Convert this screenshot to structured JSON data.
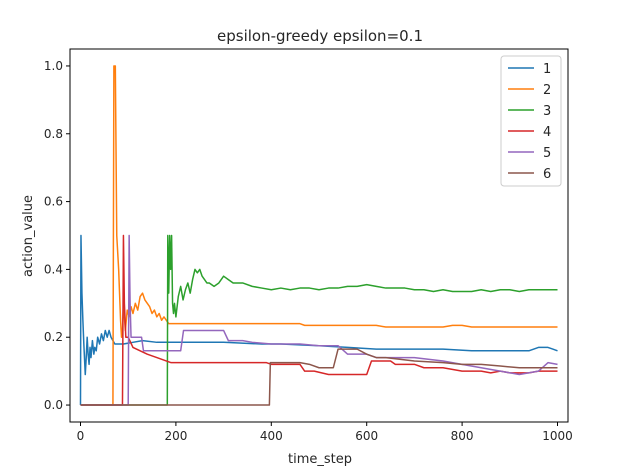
{
  "chart_data": {
    "type": "line",
    "title": "epsilon-greedy epsilon=0.1",
    "xlabel": "time_step",
    "ylabel": "action_value",
    "xlim": [
      -22,
      1022
    ],
    "ylim": [
      -0.05,
      1.05
    ],
    "xticks": [
      0,
      200,
      400,
      600,
      800,
      1000
    ],
    "yticks": [
      0.0,
      0.2,
      0.4,
      0.6,
      0.8,
      1.0
    ],
    "xtick_labels": [
      "0",
      "200",
      "400",
      "600",
      "800",
      "1000"
    ],
    "ytick_labels": [
      "0.0",
      "0.2",
      "0.4",
      "0.6",
      "0.8",
      "1.0"
    ],
    "grid": false,
    "legend_position": "top-right",
    "series": [
      {
        "name": "1",
        "color": "#1f77b4",
        "points": [
          [
            0,
            0
          ],
          [
            1,
            0.5
          ],
          [
            3,
            0.33
          ],
          [
            5,
            0.25
          ],
          [
            7,
            0.18
          ],
          [
            9,
            0.12
          ],
          [
            10,
            0.09
          ],
          [
            12,
            0.14
          ],
          [
            14,
            0.2
          ],
          [
            16,
            0.15
          ],
          [
            18,
            0.12
          ],
          [
            20,
            0.17
          ],
          [
            22,
            0.14
          ],
          [
            25,
            0.19
          ],
          [
            28,
            0.15
          ],
          [
            30,
            0.17
          ],
          [
            33,
            0.16
          ],
          [
            36,
            0.2
          ],
          [
            40,
            0.18
          ],
          [
            44,
            0.21
          ],
          [
            48,
            0.19
          ],
          [
            52,
            0.22
          ],
          [
            56,
            0.2
          ],
          [
            60,
            0.22
          ],
          [
            64,
            0.2
          ],
          [
            68,
            0.19
          ],
          [
            72,
            0.18
          ],
          [
            80,
            0.18
          ],
          [
            90,
            0.18
          ],
          [
            110,
            0.185
          ],
          [
            130,
            0.19
          ],
          [
            160,
            0.185
          ],
          [
            200,
            0.185
          ],
          [
            300,
            0.185
          ],
          [
            380,
            0.18
          ],
          [
            420,
            0.18
          ],
          [
            500,
            0.175
          ],
          [
            560,
            0.17
          ],
          [
            620,
            0.165
          ],
          [
            700,
            0.165
          ],
          [
            760,
            0.165
          ],
          [
            820,
            0.16
          ],
          [
            880,
            0.16
          ],
          [
            940,
            0.16
          ],
          [
            960,
            0.17
          ],
          [
            980,
            0.17
          ],
          [
            990,
            0.165
          ],
          [
            1000,
            0.16
          ]
        ]
      },
      {
        "name": "2",
        "color": "#ff7f0e",
        "points": [
          [
            0,
            0
          ],
          [
            68,
            0
          ],
          [
            70,
            1.0
          ],
          [
            73,
            1.0
          ],
          [
            76,
            0.5
          ],
          [
            80,
            0.4
          ],
          [
            84,
            0.25
          ],
          [
            86,
            0.2
          ],
          [
            88,
            0.22
          ],
          [
            90,
            0.3
          ],
          [
            94,
            0.22
          ],
          [
            98,
            0.28
          ],
          [
            102,
            0.26
          ],
          [
            106,
            0.29
          ],
          [
            110,
            0.27
          ],
          [
            115,
            0.3
          ],
          [
            120,
            0.28
          ],
          [
            125,
            0.32
          ],
          [
            130,
            0.33
          ],
          [
            135,
            0.31
          ],
          [
            140,
            0.3
          ],
          [
            145,
            0.29
          ],
          [
            150,
            0.27
          ],
          [
            155,
            0.28
          ],
          [
            160,
            0.26
          ],
          [
            165,
            0.27
          ],
          [
            170,
            0.25
          ],
          [
            175,
            0.26
          ],
          [
            180,
            0.25
          ],
          [
            185,
            0.24
          ],
          [
            200,
            0.24
          ],
          [
            300,
            0.24
          ],
          [
            400,
            0.24
          ],
          [
            460,
            0.24
          ],
          [
            470,
            0.235
          ],
          [
            560,
            0.235
          ],
          [
            620,
            0.235
          ],
          [
            640,
            0.23
          ],
          [
            700,
            0.23
          ],
          [
            760,
            0.23
          ],
          [
            780,
            0.235
          ],
          [
            800,
            0.235
          ],
          [
            820,
            0.23
          ],
          [
            900,
            0.23
          ],
          [
            1000,
            0.23
          ]
        ]
      },
      {
        "name": "3",
        "color": "#2ca02c",
        "points": [
          [
            0,
            0
          ],
          [
            182,
            0
          ],
          [
            183,
            0.5
          ],
          [
            185,
            0.33
          ],
          [
            187,
            0.5
          ],
          [
            189,
            0.4
          ],
          [
            191,
            0.5
          ],
          [
            193,
            0.3
          ],
          [
            195,
            0.27
          ],
          [
            197,
            0.3
          ],
          [
            200,
            0.26
          ],
          [
            205,
            0.32
          ],
          [
            210,
            0.35
          ],
          [
            215,
            0.31
          ],
          [
            220,
            0.34
          ],
          [
            225,
            0.36
          ],
          [
            230,
            0.33
          ],
          [
            235,
            0.37
          ],
          [
            240,
            0.4
          ],
          [
            245,
            0.39
          ],
          [
            250,
            0.4
          ],
          [
            255,
            0.38
          ],
          [
            260,
            0.37
          ],
          [
            265,
            0.36
          ],
          [
            270,
            0.36
          ],
          [
            280,
            0.35
          ],
          [
            290,
            0.36
          ],
          [
            300,
            0.38
          ],
          [
            310,
            0.37
          ],
          [
            320,
            0.36
          ],
          [
            340,
            0.36
          ],
          [
            360,
            0.35
          ],
          [
            380,
            0.345
          ],
          [
            400,
            0.34
          ],
          [
            420,
            0.345
          ],
          [
            440,
            0.34
          ],
          [
            460,
            0.345
          ],
          [
            480,
            0.345
          ],
          [
            500,
            0.34
          ],
          [
            520,
            0.345
          ],
          [
            540,
            0.345
          ],
          [
            560,
            0.35
          ],
          [
            580,
            0.35
          ],
          [
            600,
            0.355
          ],
          [
            620,
            0.35
          ],
          [
            640,
            0.345
          ],
          [
            660,
            0.345
          ],
          [
            680,
            0.345
          ],
          [
            700,
            0.34
          ],
          [
            720,
            0.34
          ],
          [
            740,
            0.335
          ],
          [
            760,
            0.34
          ],
          [
            780,
            0.335
          ],
          [
            800,
            0.335
          ],
          [
            820,
            0.335
          ],
          [
            840,
            0.34
          ],
          [
            860,
            0.335
          ],
          [
            880,
            0.34
          ],
          [
            900,
            0.34
          ],
          [
            920,
            0.335
          ],
          [
            940,
            0.34
          ],
          [
            960,
            0.34
          ],
          [
            980,
            0.34
          ],
          [
            1000,
            0.34
          ]
        ]
      },
      {
        "name": "4",
        "color": "#d62728",
        "points": [
          [
            0,
            0
          ],
          [
            88,
            0
          ],
          [
            90,
            0.5
          ],
          [
            92,
            0.3
          ],
          [
            95,
            0.2
          ],
          [
            100,
            0.2
          ],
          [
            110,
            0.17
          ],
          [
            125,
            0.16
          ],
          [
            140,
            0.15
          ],
          [
            160,
            0.14
          ],
          [
            190,
            0.125
          ],
          [
            220,
            0.125
          ],
          [
            300,
            0.125
          ],
          [
            390,
            0.125
          ],
          [
            400,
            0.12
          ],
          [
            430,
            0.12
          ],
          [
            460,
            0.12
          ],
          [
            470,
            0.1
          ],
          [
            490,
            0.1
          ],
          [
            520,
            0.09
          ],
          [
            550,
            0.09
          ],
          [
            600,
            0.09
          ],
          [
            610,
            0.13
          ],
          [
            650,
            0.13
          ],
          [
            660,
            0.12
          ],
          [
            700,
            0.12
          ],
          [
            720,
            0.11
          ],
          [
            760,
            0.11
          ],
          [
            800,
            0.1
          ],
          [
            840,
            0.1
          ],
          [
            860,
            0.095
          ],
          [
            880,
            0.1
          ],
          [
            900,
            0.095
          ],
          [
            940,
            0.095
          ],
          [
            960,
            0.1
          ],
          [
            1000,
            0.1
          ]
        ]
      },
      {
        "name": "5",
        "color": "#9467bd",
        "points": [
          [
            0,
            0
          ],
          [
            100,
            0
          ],
          [
            102,
            0.5
          ],
          [
            104,
            0.3
          ],
          [
            106,
            0.2
          ],
          [
            110,
            0.2
          ],
          [
            120,
            0.2
          ],
          [
            128,
            0.2
          ],
          [
            132,
            0.16
          ],
          [
            140,
            0.16
          ],
          [
            160,
            0.16
          ],
          [
            180,
            0.16
          ],
          [
            200,
            0.16
          ],
          [
            210,
            0.16
          ],
          [
            216,
            0.22
          ],
          [
            280,
            0.22
          ],
          [
            300,
            0.22
          ],
          [
            310,
            0.19
          ],
          [
            340,
            0.19
          ],
          [
            360,
            0.185
          ],
          [
            400,
            0.18
          ],
          [
            460,
            0.18
          ],
          [
            500,
            0.175
          ],
          [
            540,
            0.175
          ],
          [
            560,
            0.15
          ],
          [
            580,
            0.15
          ],
          [
            600,
            0.15
          ],
          [
            620,
            0.14
          ],
          [
            700,
            0.14
          ],
          [
            760,
            0.13
          ],
          [
            800,
            0.12
          ],
          [
            840,
            0.11
          ],
          [
            880,
            0.1
          ],
          [
            920,
            0.09
          ],
          [
            960,
            0.1
          ],
          [
            980,
            0.125
          ],
          [
            1000,
            0.12
          ]
        ]
      },
      {
        "name": "6",
        "color": "#8c564b",
        "points": [
          [
            0,
            0
          ],
          [
            396,
            0
          ],
          [
            398,
            0.125
          ],
          [
            440,
            0.125
          ],
          [
            460,
            0.125
          ],
          [
            480,
            0.12
          ],
          [
            500,
            0.11
          ],
          [
            530,
            0.11
          ],
          [
            540,
            0.165
          ],
          [
            560,
            0.165
          ],
          [
            580,
            0.165
          ],
          [
            600,
            0.15
          ],
          [
            620,
            0.14
          ],
          [
            640,
            0.14
          ],
          [
            700,
            0.13
          ],
          [
            760,
            0.125
          ],
          [
            800,
            0.12
          ],
          [
            840,
            0.12
          ],
          [
            880,
            0.115
          ],
          [
            920,
            0.11
          ],
          [
            960,
            0.11
          ],
          [
            1000,
            0.11
          ]
        ]
      }
    ]
  }
}
